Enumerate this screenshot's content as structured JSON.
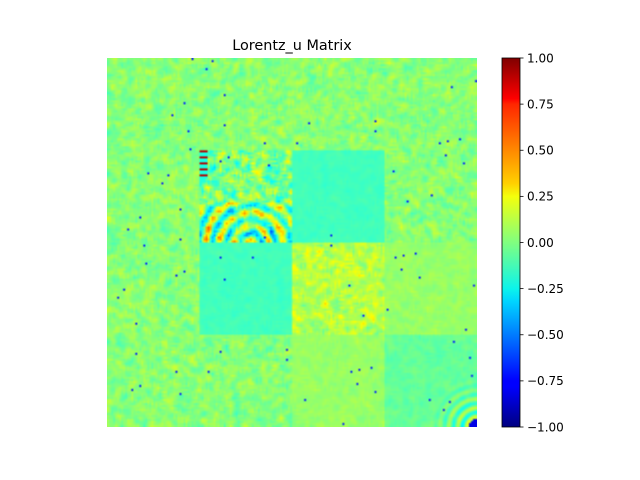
{
  "chart_data": {
    "type": "heatmap",
    "title": "Lorentz_u Matrix",
    "xlabel": "",
    "ylabel": "",
    "axes_visible": false,
    "grid": false,
    "block_grid": [
      4,
      4
    ],
    "block_notes": [
      "blocks [1][1]: strong noisy structure with ring/arc features near bottom and high values at top-left edge",
      "blocks [2][2]: yellow-tinted (positive) noisy texture",
      "blocks [1][2],[2][1],[3][3]: near-zero cyan-green smooth",
      "blocks [3][3]: fringe ring pattern in bottom-right corner"
    ],
    "value_range": [
      -1.0,
      1.0
    ],
    "colormap": "jet",
    "colorbar": {
      "ticks": [
        -1.0,
        -0.75,
        -0.5,
        -0.25,
        0.0,
        0.25,
        0.5,
        0.75,
        1.0
      ],
      "tick_labels": [
        "−1.00",
        "−0.75",
        "−0.50",
        "−0.25",
        "0.00",
        "0.25",
        "0.50",
        "0.75",
        "1.00"
      ]
    }
  }
}
